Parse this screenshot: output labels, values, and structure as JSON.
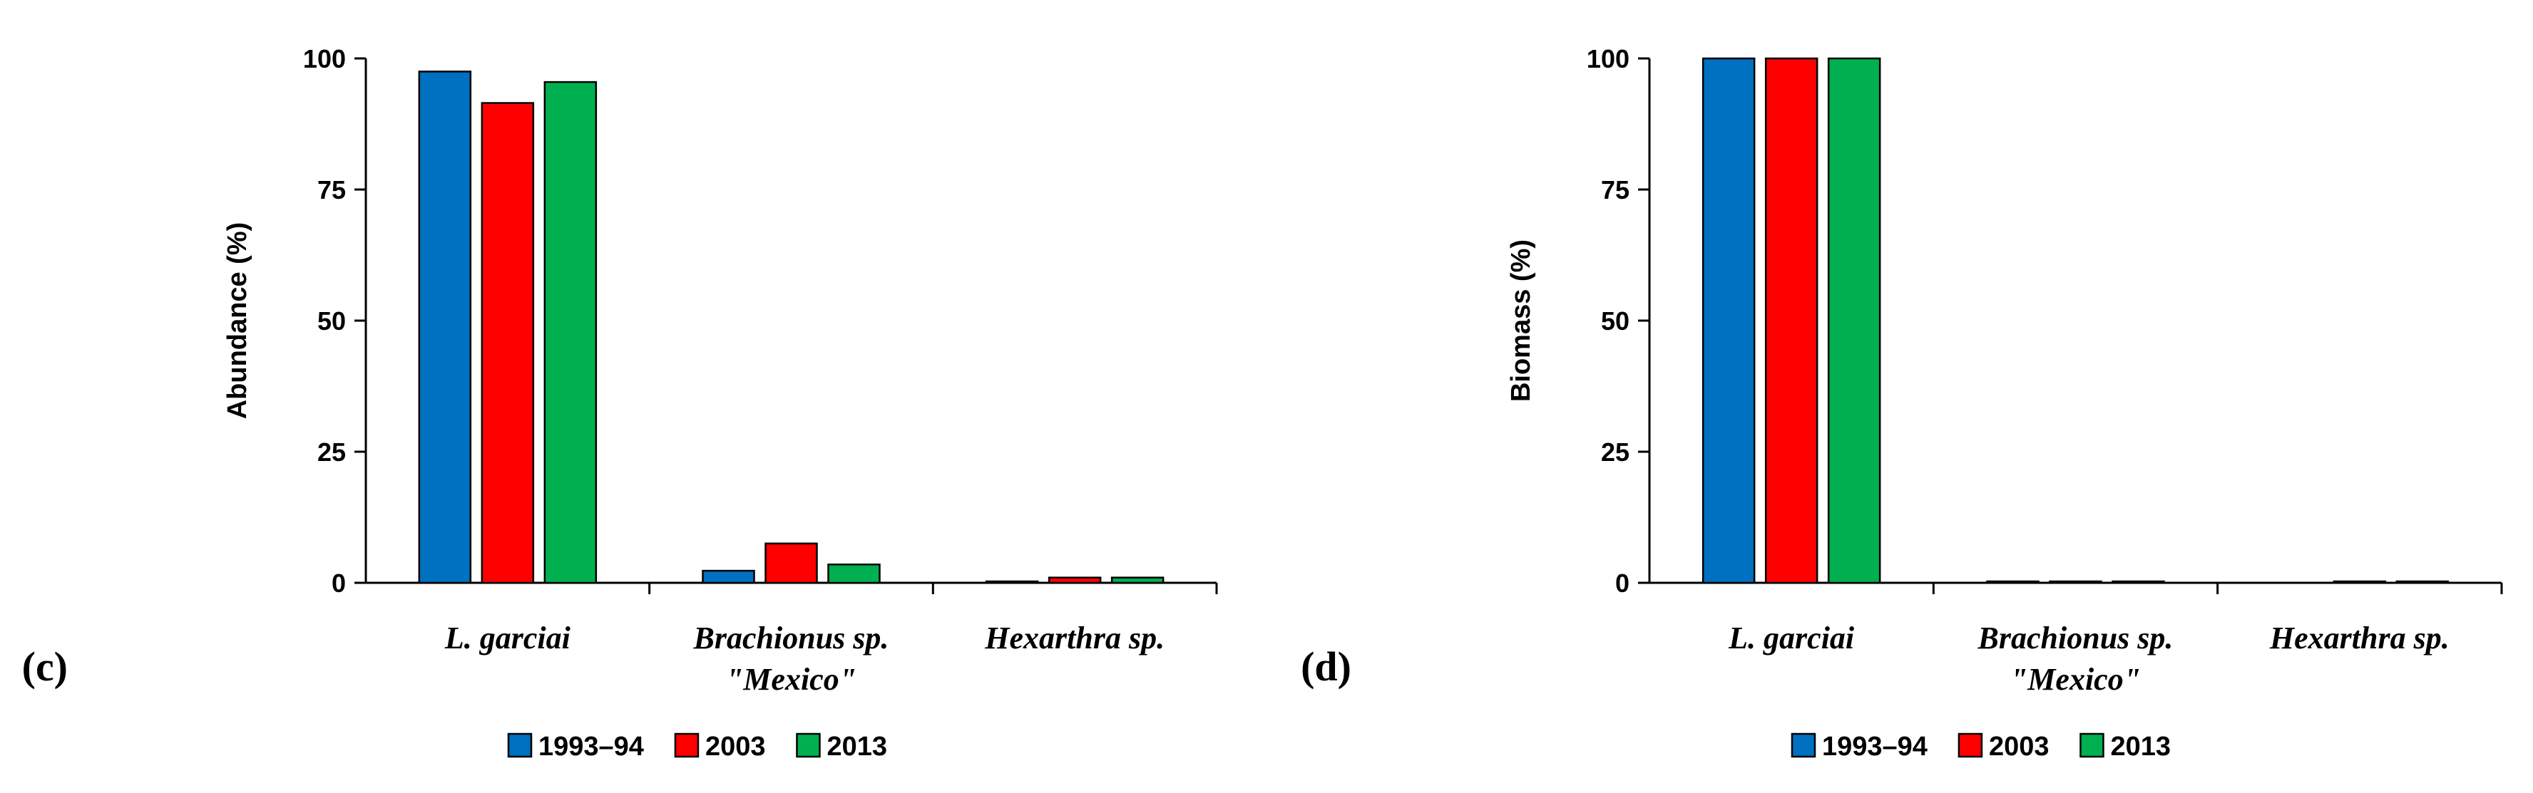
{
  "chart_data": [
    {
      "type": "bar",
      "panel_label": "(c)",
      "ylabel": "Abundance (%)",
      "categories": [
        "L. garciai",
        "Brachionus sp. \"Mexico\"",
        "Hexarthra sp."
      ],
      "category_lines": [
        [
          "L. garciai"
        ],
        [
          "Brachionus sp.",
          "\"Mexico\""
        ],
        [
          "Hexarthra sp."
        ]
      ],
      "series": [
        {
          "name": "1993–94",
          "color": "#0070c0",
          "values": [
            97.5,
            2.3,
            0.2
          ]
        },
        {
          "name": "2003",
          "color": "#ff0000",
          "values": [
            91.5,
            7.5,
            1.0
          ]
        },
        {
          "name": "2013",
          "color": "#00b050",
          "values": [
            95.5,
            3.5,
            1.0
          ]
        }
      ],
      "ylim": [
        0,
        100
      ],
      "yticks": [
        "0",
        "25",
        "50",
        "75",
        "100"
      ],
      "grid": false,
      "legend": "bottom"
    },
    {
      "type": "bar",
      "panel_label": "(d)",
      "ylabel": "Biomass (%)",
      "categories": [
        "L. garciai",
        "Brachionus sp. \"Mexico\"",
        "Hexarthra sp."
      ],
      "category_lines": [
        [
          "L. garciai"
        ],
        [
          "Brachionus sp.",
          "\"Mexico\""
        ],
        [
          "Hexarthra sp."
        ]
      ],
      "series": [
        {
          "name": "1993–94",
          "color": "#0070c0",
          "values": [
            100,
            0.2,
            0.0
          ]
        },
        {
          "name": "2003",
          "color": "#ff0000",
          "values": [
            100,
            0.2,
            0.2
          ]
        },
        {
          "name": "2013",
          "color": "#00b050",
          "values": [
            100,
            0.2,
            0.2
          ]
        }
      ],
      "ylim": [
        0,
        100
      ],
      "yticks": [
        "0",
        "25",
        "50",
        "75",
        "100"
      ],
      "grid": false,
      "legend": "bottom"
    }
  ]
}
